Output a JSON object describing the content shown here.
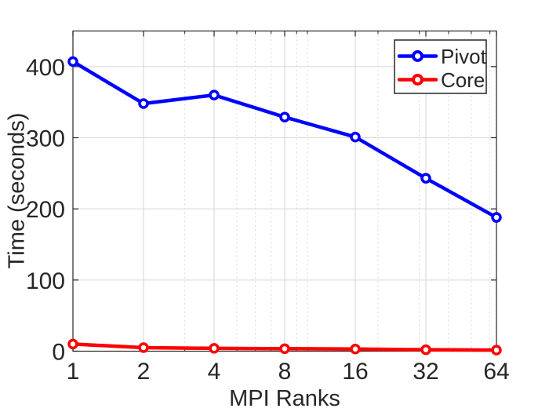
{
  "window": {
    "background": "#ffffff"
  },
  "chart_data": {
    "type": "line",
    "title": "",
    "xlabel": "MPI Ranks",
    "ylabel": "Time (seconds)",
    "x_scale": "log2",
    "x": [
      1,
      2,
      4,
      8,
      16,
      32,
      64
    ],
    "x_tick_labels": [
      "1",
      "2",
      "4",
      "8",
      "16",
      "32",
      "64"
    ],
    "xlim": [
      1,
      64
    ],
    "ylim": [
      0,
      450
    ],
    "y_ticks": [
      0,
      100,
      200,
      300,
      400
    ],
    "x_minor_positions": [
      3,
      5,
      6,
      7,
      9,
      10,
      20,
      30,
      40,
      50,
      60
    ],
    "grid": "on",
    "x_minor_grid": "on",
    "legend_position": "top-right",
    "series": [
      {
        "name": "Pivot",
        "color": "#0000ff",
        "marker": "circle",
        "values": [
          407,
          348,
          360,
          329,
          301,
          243,
          188
        ]
      },
      {
        "name": "Core",
        "color": "#ff0000",
        "marker": "circle",
        "values": [
          10,
          5,
          4,
          3.5,
          3,
          2,
          1.5
        ]
      }
    ]
  },
  "styles": {
    "major_grid_color": "#d6d6d6",
    "minor_grid_color": "#dcdcdc",
    "axis_color": "#262626",
    "text_color": "#262626",
    "legend_border_color": "#262626",
    "legend_background": "#ffffff"
  }
}
